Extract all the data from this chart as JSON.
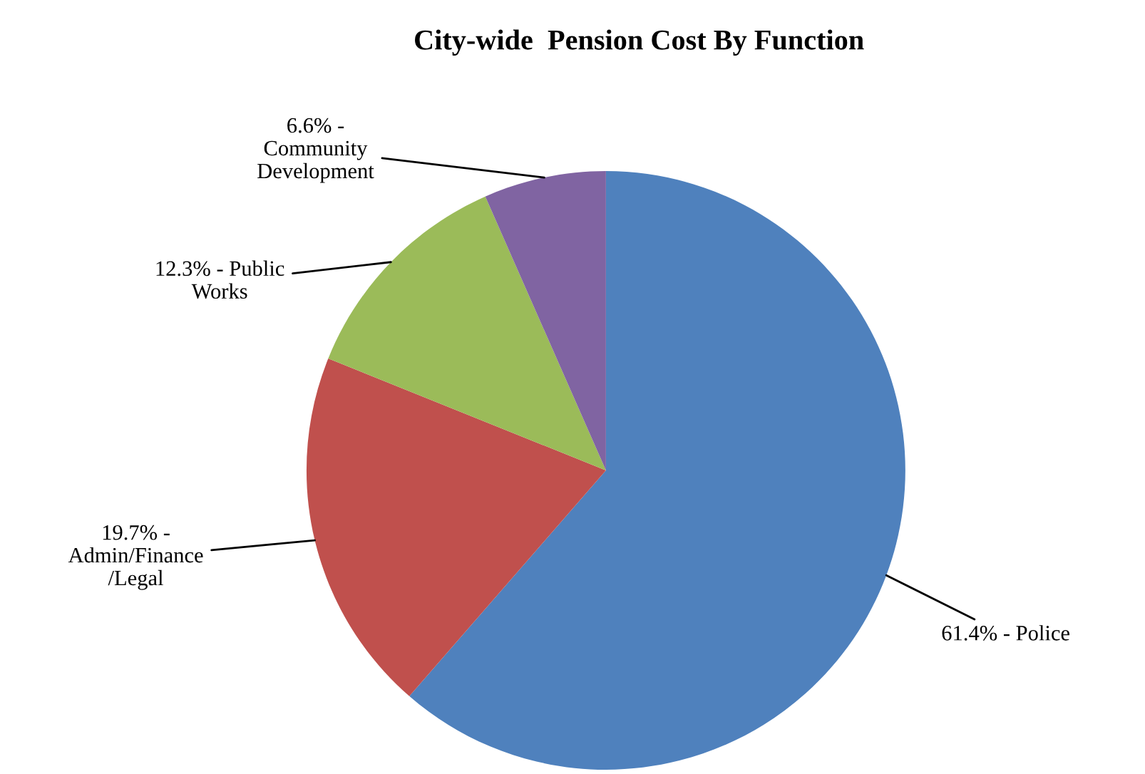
{
  "chart_data": {
    "type": "pie",
    "title": "City-wide  Pension Cost By Function",
    "categories": [
      "Police",
      "Admin/Finance\n/Legal",
      "Public\nWorks",
      "Community\nDevelopment"
    ],
    "values": [
      61.4,
      19.7,
      12.3,
      6.6
    ],
    "colors": [
      "#4f81bd",
      "#c0504d",
      "#9bbb59",
      "#8064a2"
    ],
    "value_labels": [
      "61.4% -",
      "19.7% -",
      "12.3% -",
      "6.6% -"
    ],
    "legend": false
  }
}
